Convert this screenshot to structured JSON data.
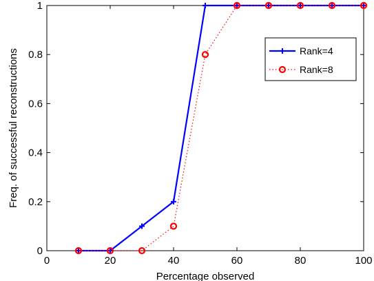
{
  "chart_data": {
    "type": "line",
    "xlabel": "Percentage observed",
    "ylabel": "Freq. of successful reconstructions",
    "xlim": [
      0,
      100
    ],
    "ylim": [
      0,
      1
    ],
    "xticks": [
      "0",
      "20",
      "40",
      "60",
      "80",
      "100"
    ],
    "yticks": [
      "0",
      "0.2",
      "0.4",
      "0.6",
      "0.8",
      "1"
    ],
    "grid": false,
    "legend_position": "top-right",
    "series": [
      {
        "name": "Rank=4",
        "color": "#0000ff",
        "line_style": "solid",
        "marker": "plus",
        "x": [
          10,
          20,
          30,
          40,
          50,
          60,
          70,
          80,
          90,
          100
        ],
        "y": [
          0,
          0,
          0.1,
          0.2,
          1,
          1,
          1,
          1,
          1,
          1
        ]
      },
      {
        "name": "Rank=8",
        "color": "#ff0000",
        "line_style": "dotted",
        "marker": "circle",
        "x": [
          10,
          20,
          30,
          40,
          50,
          60,
          70,
          80,
          90,
          100
        ],
        "y": [
          0,
          0,
          0,
          0.1,
          0.8,
          1,
          1,
          1,
          1,
          1
        ]
      }
    ]
  }
}
